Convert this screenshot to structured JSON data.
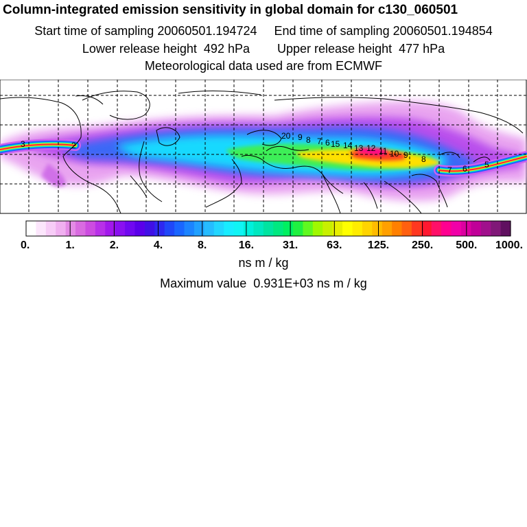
{
  "header": {
    "title": "Column-integrated emission sensitivity in global domain for c130_060501",
    "start_label": "Start time of sampling 20060501.194724",
    "end_label": "End time of sampling 20060501.194854",
    "lower_label": "Lower release height  492 hPa",
    "upper_label": "Upper release height  477 hPa",
    "met_label": "Meteorological data used are from ECMWF"
  },
  "map": {
    "labels_west": [
      "3",
      "2"
    ],
    "labels_central": [
      "20",
      "9",
      "8",
      "7",
      "6",
      "15"
    ],
    "labels_east": [
      "14",
      "13",
      "12",
      "11",
      "10",
      "9",
      "8"
    ],
    "labels_far_east": [
      "7",
      "6",
      "5"
    ]
  },
  "colorbar": {
    "tick_labels": [
      "0.",
      "1.",
      "2.",
      "4.",
      "8.",
      "16.",
      "31.",
      "63.",
      "125.",
      "250.",
      "500.",
      "1000."
    ],
    "colors": [
      "#ffffff",
      "#fce6fc",
      "#f7ccf7",
      "#f0b0f0",
      "#e48be6",
      "#d96be0",
      "#cc4ce0",
      "#b830e8",
      "#a218ec",
      "#8a10f0",
      "#7008f0",
      "#5a00ea",
      "#4010e6",
      "#2e28f0",
      "#2048f8",
      "#1a66ff",
      "#1c84ff",
      "#20a0ff",
      "#26bcff",
      "#22d6ff",
      "#18ecff",
      "#10f4f4",
      "#00f0dc",
      "#00e8c0",
      "#00e4a0",
      "#00e880",
      "#00f060",
      "#20f040",
      "#60f820",
      "#a0f800",
      "#c8f000",
      "#e8f000",
      "#ffff00",
      "#ffec00",
      "#ffd400",
      "#ffbc00",
      "#ffa000",
      "#ff8000",
      "#ff6010",
      "#ff3820",
      "#ff1830",
      "#ff1068",
      "#ff0090",
      "#f000a8",
      "#dc00a0",
      "#c00098",
      "#a0108c",
      "#801878",
      "#601060"
    ],
    "unit": "ns m / kg",
    "max_value_label": "Maximum value  0.931E+03 ns m / kg"
  }
}
